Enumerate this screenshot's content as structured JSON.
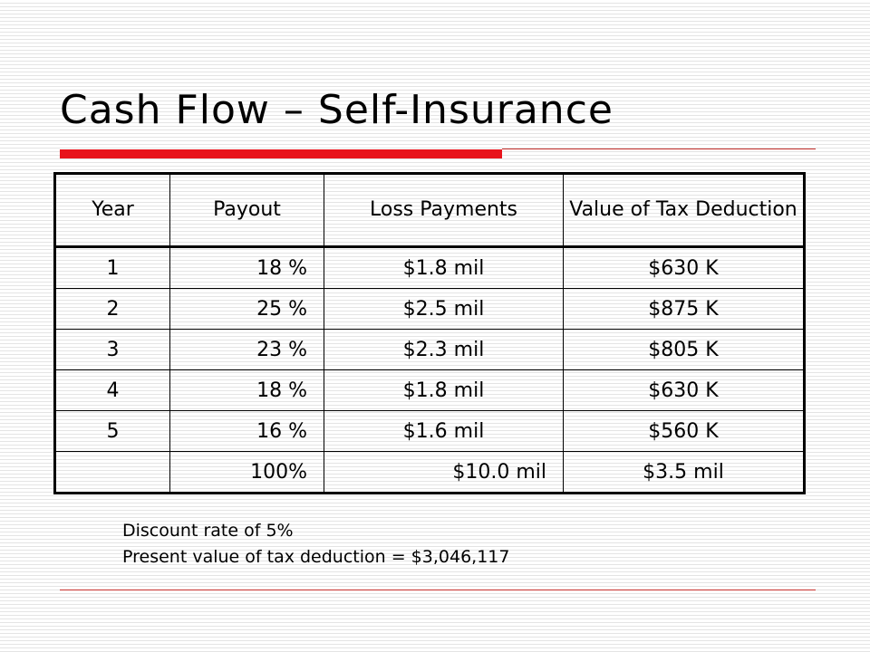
{
  "slide": {
    "title": "Cash Flow – Self-Insurance"
  },
  "table": {
    "headers": [
      "Year",
      "Payout",
      "Loss Payments",
      "Value of Tax Deduction"
    ],
    "rows": [
      [
        "1",
        "18 %",
        "$1.8 mil",
        "$630 K"
      ],
      [
        "2",
        "25 %",
        "$2.5 mil",
        "$875 K"
      ],
      [
        "3",
        "23 %",
        "$2.3 mil",
        "$805 K"
      ],
      [
        "4",
        "18 %",
        "$1.8 mil",
        "$630 K"
      ],
      [
        "5",
        "16 %",
        "$1.6 mil",
        "$560 K"
      ],
      [
        "",
        "100%",
        "$10.0 mil",
        "$3.5 mil"
      ]
    ]
  },
  "notes": {
    "discount_rate": "Discount rate of 5%",
    "present_value": "Present value of tax deduction = $3,046,117"
  },
  "colors": {
    "accent_red": "#e8141c",
    "rule": "#c7312d"
  }
}
